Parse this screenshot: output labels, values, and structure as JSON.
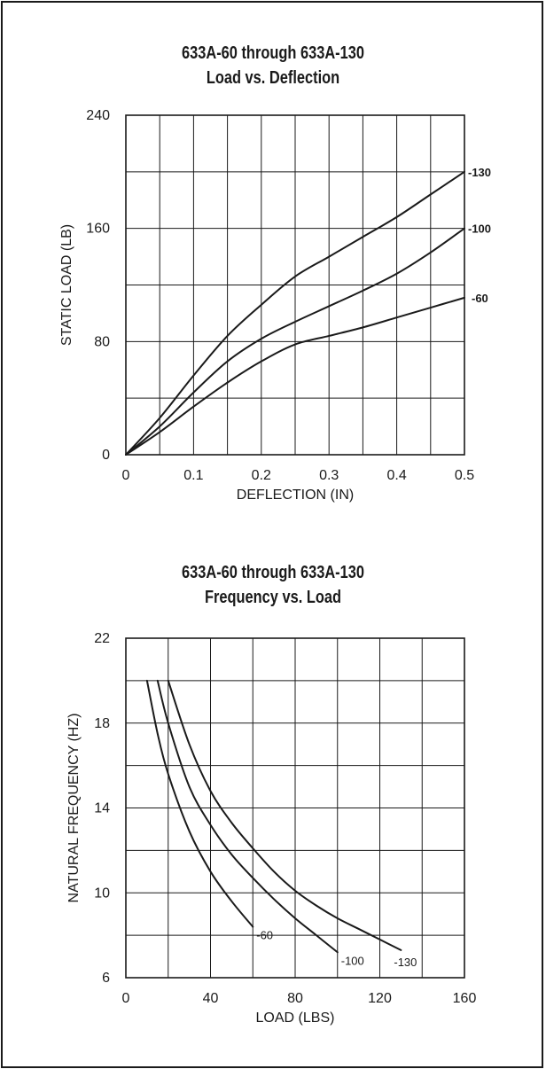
{
  "chart_data": [
    {
      "type": "line",
      "title": "633A-60 through 633A-130",
      "subtitle": "Load vs. Deflection",
      "xlabel": "DEFLECTION (IN)",
      "ylabel": "STATIC LOAD (LB)",
      "xlim": [
        0,
        0.5
      ],
      "ylim": [
        0,
        240
      ],
      "xticks": [
        "0",
        "0.1",
        "0.2",
        "0.3",
        "0.4",
        "0.5"
      ],
      "yticks": [
        "0",
        "80",
        "160",
        "240"
      ],
      "x_grid_step": 0.05,
      "y_grid_step": 40,
      "grid": true,
      "series": [
        {
          "name": "-130",
          "x": [
            0,
            0.05,
            0.1,
            0.15,
            0.2,
            0.25,
            0.3,
            0.35,
            0.4,
            0.45,
            0.5
          ],
          "y": [
            0,
            26,
            56,
            84,
            106,
            126,
            140,
            154,
            168,
            184,
            200
          ]
        },
        {
          "name": "-100",
          "x": [
            0,
            0.05,
            0.1,
            0.15,
            0.2,
            0.25,
            0.3,
            0.35,
            0.4,
            0.45,
            0.5
          ],
          "y": [
            0,
            20,
            44,
            66,
            82,
            94,
            105,
            116,
            128,
            143,
            160
          ]
        },
        {
          "name": "-60",
          "x": [
            0,
            0.05,
            0.1,
            0.15,
            0.2,
            0.25,
            0.3,
            0.35,
            0.4,
            0.45,
            0.5
          ],
          "y": [
            0,
            16,
            34,
            51,
            66,
            78,
            84,
            90,
            97,
            104,
            111
          ]
        }
      ]
    },
    {
      "type": "line",
      "title": "633A-60 through 633A-130",
      "subtitle": "Frequency vs. Load",
      "xlabel": "LOAD (LBS)",
      "ylabel": "NATURAL FREQUENCY (HZ)",
      "xlim": [
        0,
        160
      ],
      "ylim": [
        6,
        22
      ],
      "xticks": [
        "0",
        "40",
        "80",
        "120",
        "160"
      ],
      "yticks": [
        "6",
        "10",
        "14",
        "18",
        "22"
      ],
      "x_grid_step": 20,
      "y_grid_step": 2,
      "grid": true,
      "series": [
        {
          "name": "-60",
          "x": [
            10,
            15,
            20,
            30,
            40,
            50,
            60
          ],
          "y": [
            20,
            17.5,
            15.6,
            12.9,
            11.0,
            9.6,
            8.4
          ]
        },
        {
          "name": "-100",
          "x": [
            15,
            20,
            30,
            40,
            50,
            60,
            70,
            80,
            90,
            100
          ],
          "y": [
            20,
            18.0,
            15.0,
            13.2,
            11.8,
            10.7,
            9.7,
            8.8,
            8.0,
            7.2
          ]
        },
        {
          "name": "-130",
          "x": [
            20,
            30,
            40,
            50,
            60,
            70,
            80,
            90,
            100,
            110,
            120,
            130
          ],
          "y": [
            20,
            17.0,
            14.8,
            13.3,
            12.1,
            11.0,
            10.1,
            9.4,
            8.8,
            8.3,
            7.8,
            7.3
          ]
        }
      ]
    }
  ]
}
